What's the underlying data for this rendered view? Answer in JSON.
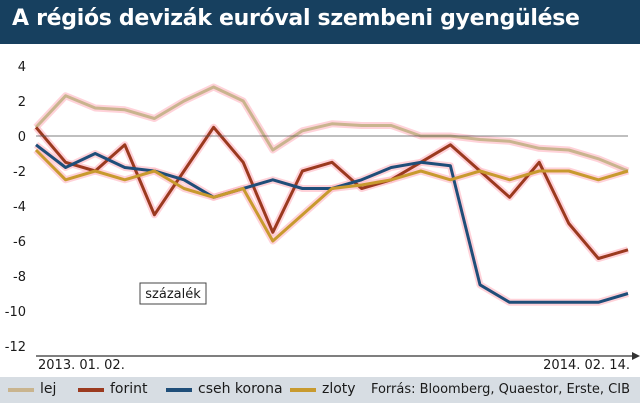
{
  "header": {
    "title": "A régiós devizák euróval szembeni gyengülése"
  },
  "source": "Forrás: Bloomberg, Quaestor, Erste, CIB",
  "colors": {
    "lej": "#c9b48e",
    "forint": "#9b3a1f",
    "cseh_korona": "#1f4e79",
    "zloty": "#c89a2e",
    "title_bg": "#17405f",
    "legend_bg": "#d7dde3",
    "glow": "#ffbfc9"
  },
  "chart_data": {
    "type": "line",
    "title": "A régiós devizák euróval szembeni gyengülése",
    "unit_label": "százalék",
    "ylim": [
      -12,
      4
    ],
    "yticks": [
      "4",
      "2",
      "0",
      "-2",
      "-4",
      "-6",
      "-8",
      "-10",
      "-12"
    ],
    "x_start_label": "2013. 01. 02.",
    "x_end_label": "2014. 02. 14.",
    "legend_position": "bottom",
    "grid": false,
    "x": [
      0,
      0.05,
      0.1,
      0.15,
      0.2,
      0.25,
      0.3,
      0.35,
      0.4,
      0.45,
      0.5,
      0.55,
      0.6,
      0.65,
      0.7,
      0.75,
      0.8,
      0.85,
      0.9,
      0.95,
      1.0
    ],
    "series": [
      {
        "name": "lej",
        "key": "lej",
        "values": [
          0.5,
          2.3,
          1.6,
          1.5,
          1.0,
          2.0,
          2.8,
          2.0,
          -0.8,
          0.3,
          0.7,
          0.6,
          0.6,
          0.0,
          0.0,
          -0.2,
          -0.3,
          -0.7,
          -0.8,
          -1.3,
          -2.0
        ]
      },
      {
        "name": "forint",
        "key": "forint",
        "values": [
          0.5,
          -1.5,
          -2.0,
          -0.5,
          -4.5,
          -2.0,
          0.5,
          -1.5,
          -5.5,
          -2.0,
          -1.5,
          -3.0,
          -2.5,
          -1.5,
          -0.5,
          -2.0,
          -3.5,
          -1.5,
          -5.0,
          -7.0,
          -6.5
        ]
      },
      {
        "name": "cseh korona",
        "key": "cseh_korona",
        "values": [
          -0.5,
          -1.8,
          -1.0,
          -1.8,
          -2.0,
          -2.5,
          -3.5,
          -3.0,
          -2.5,
          -3.0,
          -3.0,
          -2.5,
          -1.8,
          -1.5,
          -1.7,
          -8.5,
          -9.5,
          -9.5,
          -9.5,
          -9.5,
          -9.0
        ]
      },
      {
        "name": "zloty",
        "key": "zloty",
        "values": [
          -0.8,
          -2.5,
          -2.0,
          -2.5,
          -2.0,
          -3.0,
          -3.5,
          -3.0,
          -6.0,
          -4.5,
          -3.0,
          -2.8,
          -2.5,
          -2.0,
          -2.5,
          -2.0,
          -2.5,
          -2.0,
          -2.0,
          -2.5,
          -2.0
        ]
      }
    ]
  },
  "legend": {
    "items": [
      {
        "label": "lej",
        "key": "lej"
      },
      {
        "label": "forint",
        "key": "forint"
      },
      {
        "label": "cseh korona",
        "key": "cseh_korona"
      },
      {
        "label": "zloty",
        "key": "zloty"
      }
    ]
  }
}
